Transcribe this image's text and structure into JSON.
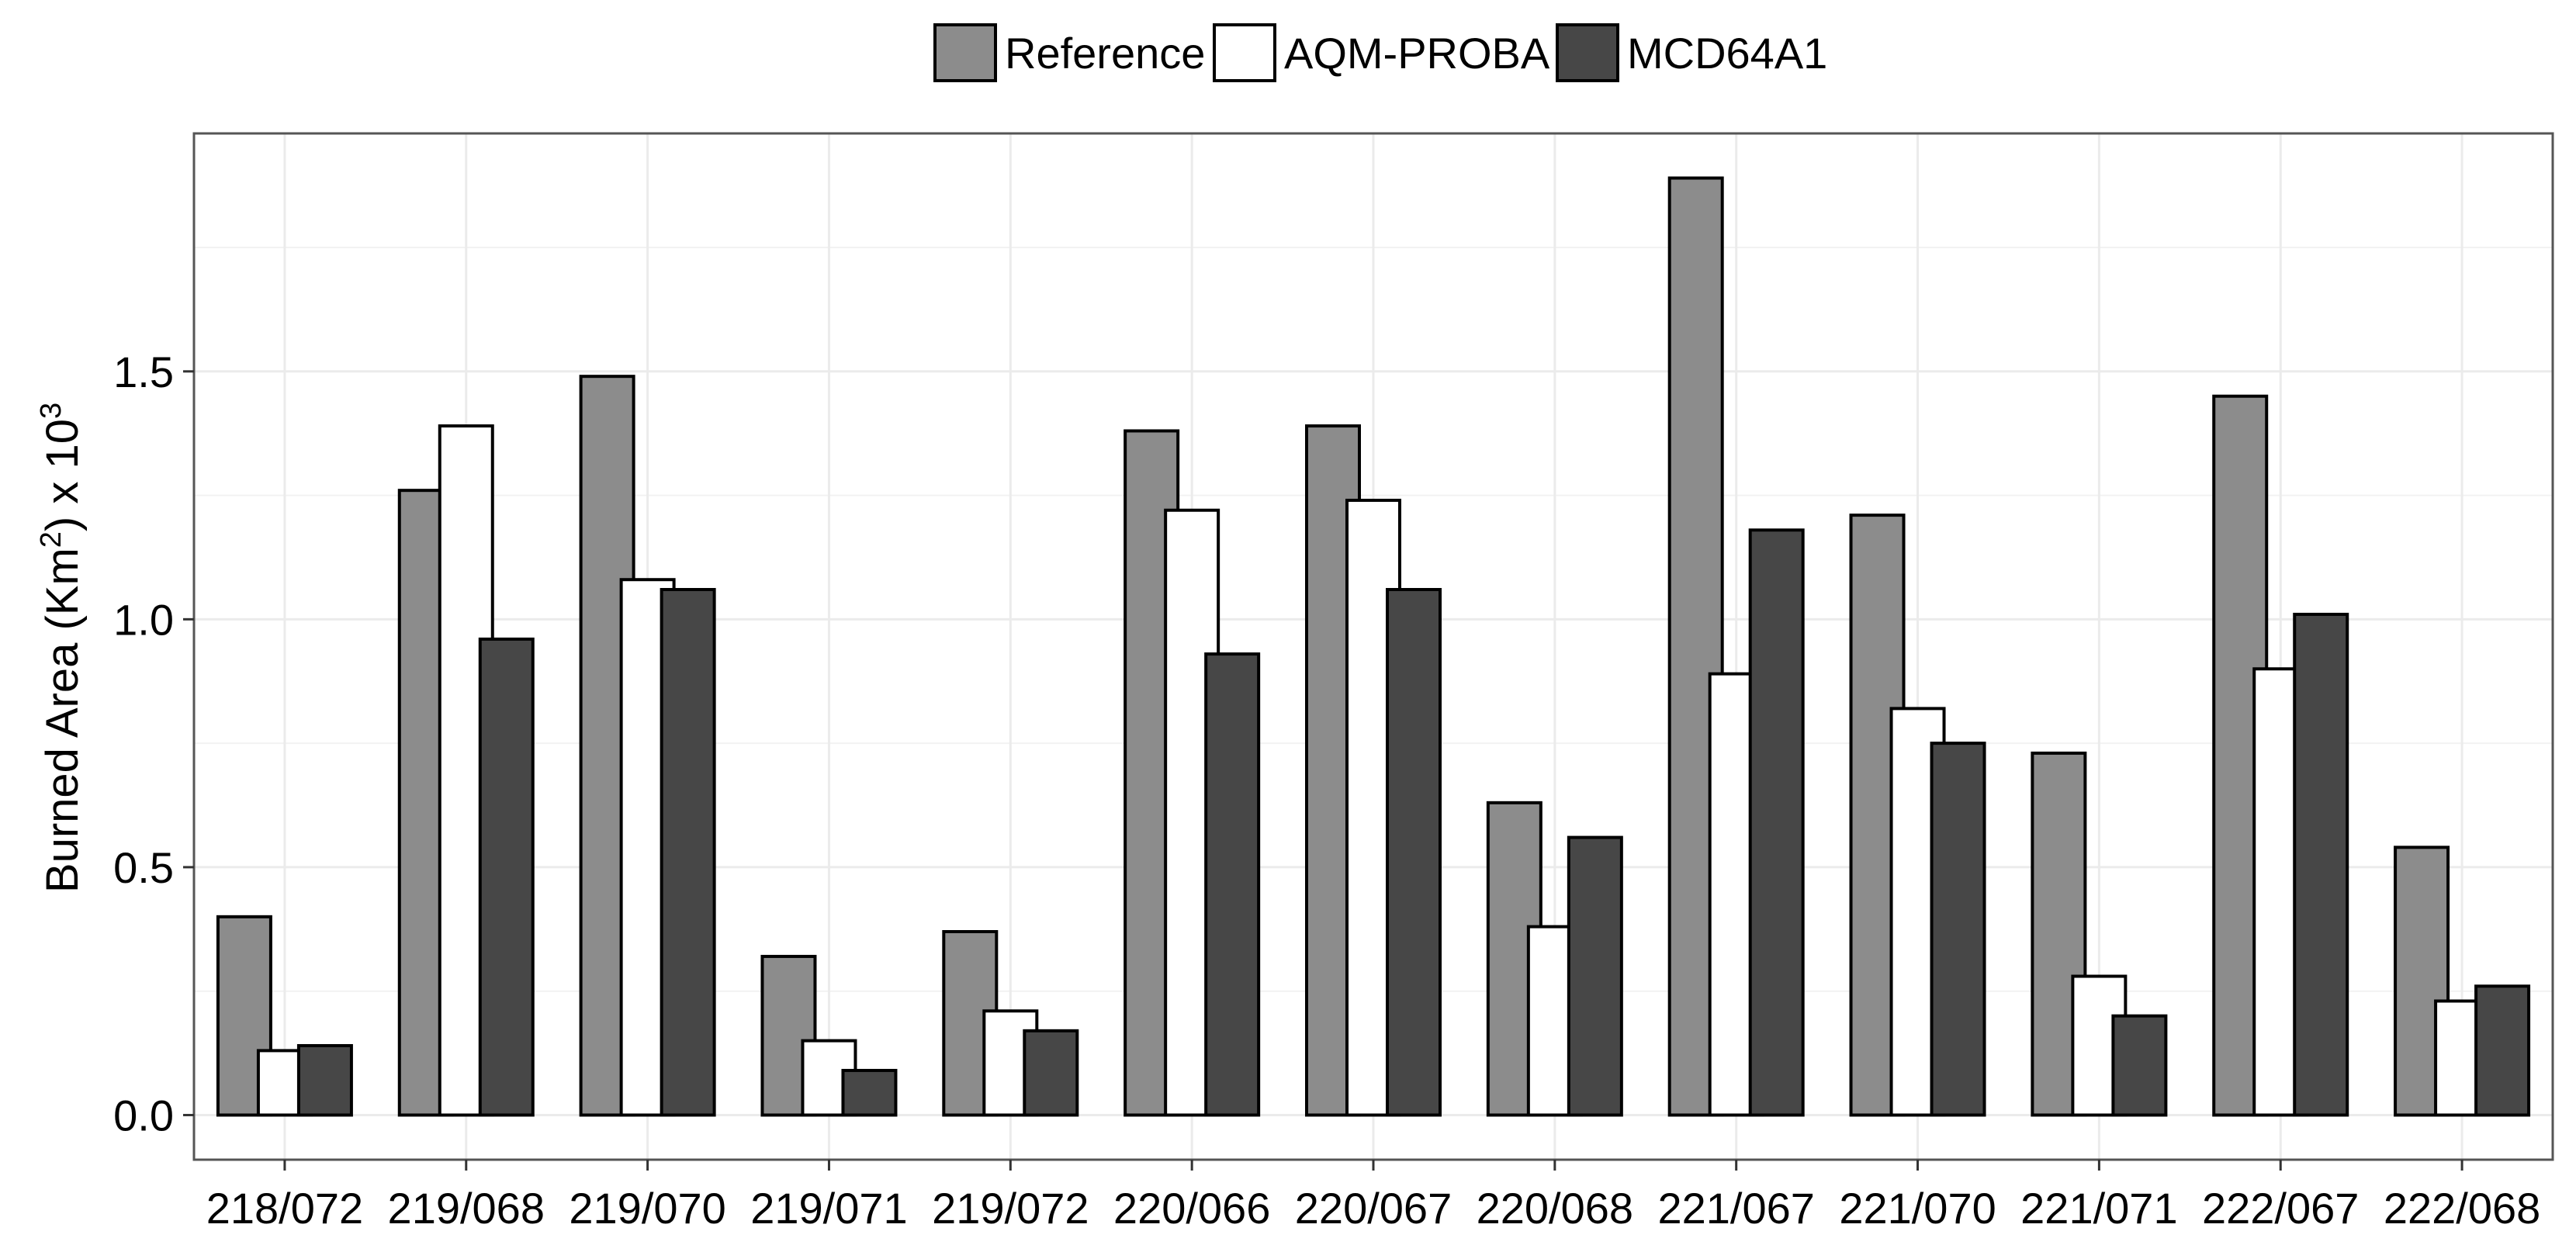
{
  "chart_data": {
    "type": "bar",
    "title": "",
    "xlabel": "",
    "ylabel": {
      "prefix": "Burned Area (Km",
      "exp1": "2",
      "middle": ") x 10",
      "exp2": "3"
    },
    "categories": [
      "218/072",
      "219/068",
      "219/070",
      "219/071",
      "219/072",
      "220/066",
      "220/067",
      "220/068",
      "221/067",
      "221/070",
      "221/071",
      "222/067",
      "222/068"
    ],
    "series": [
      {
        "name": "Reference",
        "color": "#8c8c8c",
        "values": [
          0.4,
          1.26,
          1.49,
          0.32,
          0.37,
          1.38,
          1.39,
          0.63,
          1.89,
          1.21,
          0.73,
          1.45,
          0.54
        ]
      },
      {
        "name": "AQM-PROBA",
        "color": "#ffffff",
        "values": [
          0.13,
          1.39,
          1.08,
          0.15,
          0.21,
          1.22,
          1.24,
          0.38,
          0.89,
          0.82,
          0.28,
          0.9,
          0.23
        ]
      },
      {
        "name": "MCD64A1",
        "color": "#474747",
        "values": [
          0.14,
          0.96,
          1.06,
          0.09,
          0.17,
          0.93,
          1.06,
          0.56,
          1.18,
          0.75,
          0.2,
          1.01,
          0.26
        ]
      }
    ],
    "yticks": [
      0.0,
      0.5,
      1.0,
      1.5
    ],
    "ytick_labels": [
      "0.0",
      "0.5",
      "1.0",
      "1.5"
    ],
    "ylim": [
      -0.09,
      1.98
    ],
    "grid": true,
    "legend_position": "top-center"
  }
}
